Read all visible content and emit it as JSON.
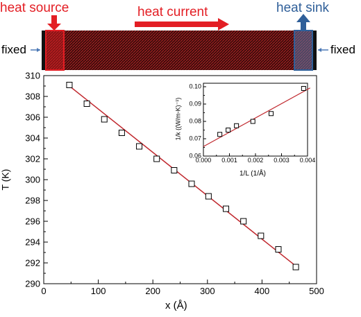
{
  "colors": {
    "heat_red": "#e31e24",
    "sink_blue": "#2f5f99",
    "strip_red": "#8b1a1a",
    "marker": "#000000",
    "fit_line": "#c0282e"
  },
  "schematic": {
    "heat_source_label": "heat source",
    "heat_current_label": "heat current",
    "heat_sink_label": "heat sink",
    "fixed_left_label": "fixed",
    "fixed_right_label": "fixed"
  },
  "chart_data": [
    {
      "type": "scatter",
      "xlabel": "x (Å)",
      "ylabel": "T (K)",
      "xlim": [
        0,
        500
      ],
      "ylim": [
        290,
        310
      ],
      "xticks": [
        "0",
        "100",
        "200",
        "300",
        "400",
        "500"
      ],
      "yticks": [
        "290",
        "292",
        "294",
        "296",
        "298",
        "300",
        "302",
        "304",
        "306",
        "308",
        "310"
      ],
      "grid": false,
      "points": [
        {
          "x": 47,
          "y": 309.1
        },
        {
          "x": 79,
          "y": 307.3
        },
        {
          "x": 111,
          "y": 305.8
        },
        {
          "x": 143,
          "y": 304.5
        },
        {
          "x": 175,
          "y": 303.2
        },
        {
          "x": 207,
          "y": 302.0
        },
        {
          "x": 239,
          "y": 300.9
        },
        {
          "x": 271,
          "y": 299.6
        },
        {
          "x": 302,
          "y": 298.4
        },
        {
          "x": 334,
          "y": 297.2
        },
        {
          "x": 366,
          "y": 296.0
        },
        {
          "x": 398,
          "y": 294.6
        },
        {
          "x": 430,
          "y": 293.3
        },
        {
          "x": 462,
          "y": 291.6
        }
      ],
      "fit_line": {
        "x": [
          47,
          462
        ],
        "y": [
          309.0,
          291.7
        ]
      }
    },
    {
      "type": "scatter",
      "inset": true,
      "xlabel": "1/L (1/Å)",
      "ylabel": "1/k ((W/m-K)⁻¹)",
      "xlim": [
        0,
        0.004
      ],
      "ylim": [
        0.06,
        0.1
      ],
      "xticks": [
        "0.000",
        "0.001",
        "0.002",
        "0.003",
        "0.004"
      ],
      "yticks": [
        "0.06",
        "0.07",
        "0.08",
        "0.09",
        "0.10"
      ],
      "grid": false,
      "points": [
        {
          "x": 0.00063,
          "y": 0.0725
        },
        {
          "x": 0.00095,
          "y": 0.075
        },
        {
          "x": 0.00127,
          "y": 0.0775
        },
        {
          "x": 0.0019,
          "y": 0.08
        },
        {
          "x": 0.0026,
          "y": 0.0845
        },
        {
          "x": 0.00385,
          "y": 0.099
        }
      ],
      "fit_line": {
        "x": [
          0,
          0.0041
        ],
        "y": [
          0.0655,
          0.0993
        ]
      }
    }
  ]
}
